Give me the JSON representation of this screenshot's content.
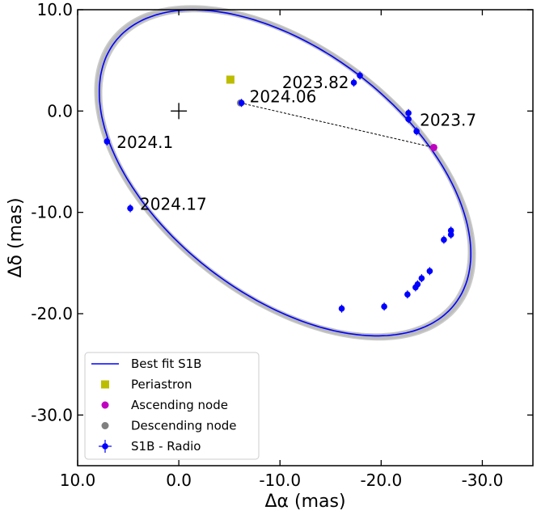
{
  "chart_data": {
    "type": "scatter",
    "xlabel": "Δα (mas)",
    "ylabel": "Δδ (mas)",
    "xlim": [
      10,
      -35
    ],
    "ylim": [
      -35,
      10
    ],
    "x_ticks": [
      10,
      0,
      -10,
      -20,
      -30
    ],
    "y_ticks": [
      10,
      0,
      -10,
      -20,
      -30
    ],
    "x_tick_labels": [
      "10.0",
      "0.0",
      "-10.0",
      "-20.0",
      "-30.0"
    ],
    "y_tick_labels": [
      "10.0",
      "0.0",
      "-10.0",
      "-20.0",
      "-30.0"
    ],
    "grid": false,
    "legend_position": "lower-left",
    "orbit": {
      "name": "Best fit S1B",
      "color": "#0000ff",
      "center": [
        -10.5,
        -6.1
      ],
      "semi_axes": [
        21.2,
        12.1
      ],
      "rotation_deg": 37.5
    },
    "center_marker": {
      "x": 0,
      "y": 0
    },
    "periastron": {
      "name": "Periastron",
      "x": -5.1,
      "y": 3.1,
      "color": "#bcbd00"
    },
    "ascending_node": {
      "name": "Ascending node",
      "x": -25.2,
      "y": -3.6,
      "color": "#c000c0"
    },
    "descending_node": {
      "name": "Descending node",
      "x": -6.1,
      "y": 0.8,
      "color": "#808080"
    },
    "radio": {
      "name": "S1B - Radio",
      "color": "#0000ff",
      "points": [
        {
          "x": -17.9,
          "y": 3.5
        },
        {
          "x": -17.3,
          "y": 2.8
        },
        {
          "x": -22.7,
          "y": -0.2
        },
        {
          "x": -22.7,
          "y": -0.8
        },
        {
          "x": -23.5,
          "y": -2.0
        },
        {
          "x": -6.2,
          "y": 0.8
        },
        {
          "x": 7.1,
          "y": -3.0
        },
        {
          "x": 4.8,
          "y": -9.6
        },
        {
          "x": -26.9,
          "y": -11.8
        },
        {
          "x": -26.9,
          "y": -12.2
        },
        {
          "x": -26.2,
          "y": -12.7
        },
        {
          "x": -24.8,
          "y": -15.8
        },
        {
          "x": -24.0,
          "y": -16.5
        },
        {
          "x": -23.6,
          "y": -17.1
        },
        {
          "x": -23.4,
          "y": -17.4
        },
        {
          "x": -22.6,
          "y": -18.1
        },
        {
          "x": -20.3,
          "y": -19.3
        },
        {
          "x": -16.1,
          "y": -19.5
        }
      ]
    },
    "annotations": [
      {
        "text": "2023.82",
        "x": -17.3,
        "y": 2.8,
        "anchor": "end",
        "dx": -6,
        "dy": 7
      },
      {
        "text": "2024.06",
        "x": -6.2,
        "y": 0.8,
        "anchor": "start",
        "dx": 10,
        "dy": -1
      },
      {
        "text": "2023.7",
        "x": -22.7,
        "y": -0.5,
        "anchor": "start",
        "dx": 14,
        "dy": 12
      },
      {
        "text": "2024.1",
        "x": 7.1,
        "y": -3.0,
        "anchor": "start",
        "dx": 12,
        "dy": 8
      },
      {
        "text": "2024.17",
        "x": 4.8,
        "y": -9.6,
        "anchor": "start",
        "dx": 12,
        "dy": 2
      }
    ],
    "legend": [
      {
        "label": "Best fit S1B",
        "kind": "line",
        "color": "#0000ff"
      },
      {
        "label": "Periastron",
        "kind": "square",
        "color": "#bcbd00"
      },
      {
        "label": "Ascending node",
        "kind": "circle",
        "color": "#c000c0"
      },
      {
        "label": "Descending node",
        "kind": "circle",
        "color": "#808080"
      },
      {
        "label": "S1B - Radio",
        "kind": "errorbar",
        "color": "#0000ff"
      }
    ]
  }
}
